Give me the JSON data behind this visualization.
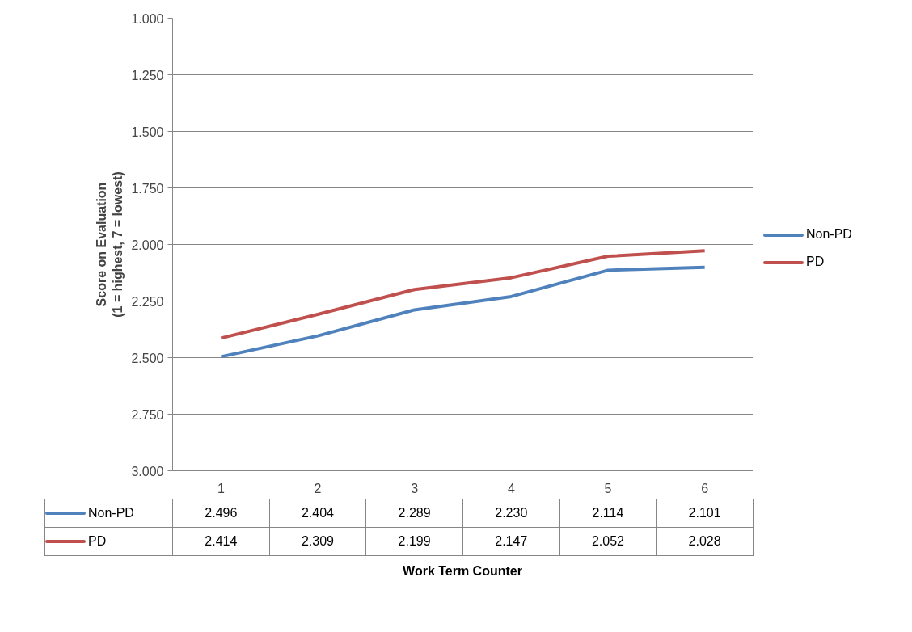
{
  "chart_data": {
    "type": "line",
    "ylabel": "Score on Evaluation\n(1 = highest, 7 = lowest)",
    "annotations": [
      "Work Term Counter"
    ],
    "categories": [
      "1",
      "2",
      "3",
      "4",
      "5",
      "6"
    ],
    "series": [
      {
        "name": "Non-PD",
        "color": "#4f81bd",
        "values": [
          2.496,
          2.404,
          2.289,
          2.23,
          2.114,
          2.101
        ],
        "value_labels": [
          "2.496",
          "2.404",
          "2.289",
          "2.230",
          "2.114",
          "2.101"
        ]
      },
      {
        "name": "PD",
        "color": "#c0504d",
        "values": [
          2.414,
          2.309,
          2.199,
          2.147,
          2.052,
          2.028
        ],
        "value_labels": [
          "2.414",
          "2.309",
          "2.199",
          "2.147",
          "2.052",
          "2.028"
        ]
      }
    ],
    "ylim": [
      3.0,
      1.0
    ],
    "yticks": [
      {
        "value": 1.0,
        "label": "1.000"
      },
      {
        "value": 1.25,
        "label": "1.250"
      },
      {
        "value": 1.5,
        "label": "1.500"
      },
      {
        "value": 1.75,
        "label": "1.750"
      },
      {
        "value": 2.0,
        "label": "2.000"
      },
      {
        "value": 2.25,
        "label": "2.250"
      },
      {
        "value": 2.5,
        "label": "2.500"
      },
      {
        "value": 2.75,
        "label": "2.750"
      },
      {
        "value": 3.0,
        "label": "3.000"
      }
    ],
    "grid": "y",
    "legend": "right",
    "marker": "none",
    "line_style": "solid"
  }
}
